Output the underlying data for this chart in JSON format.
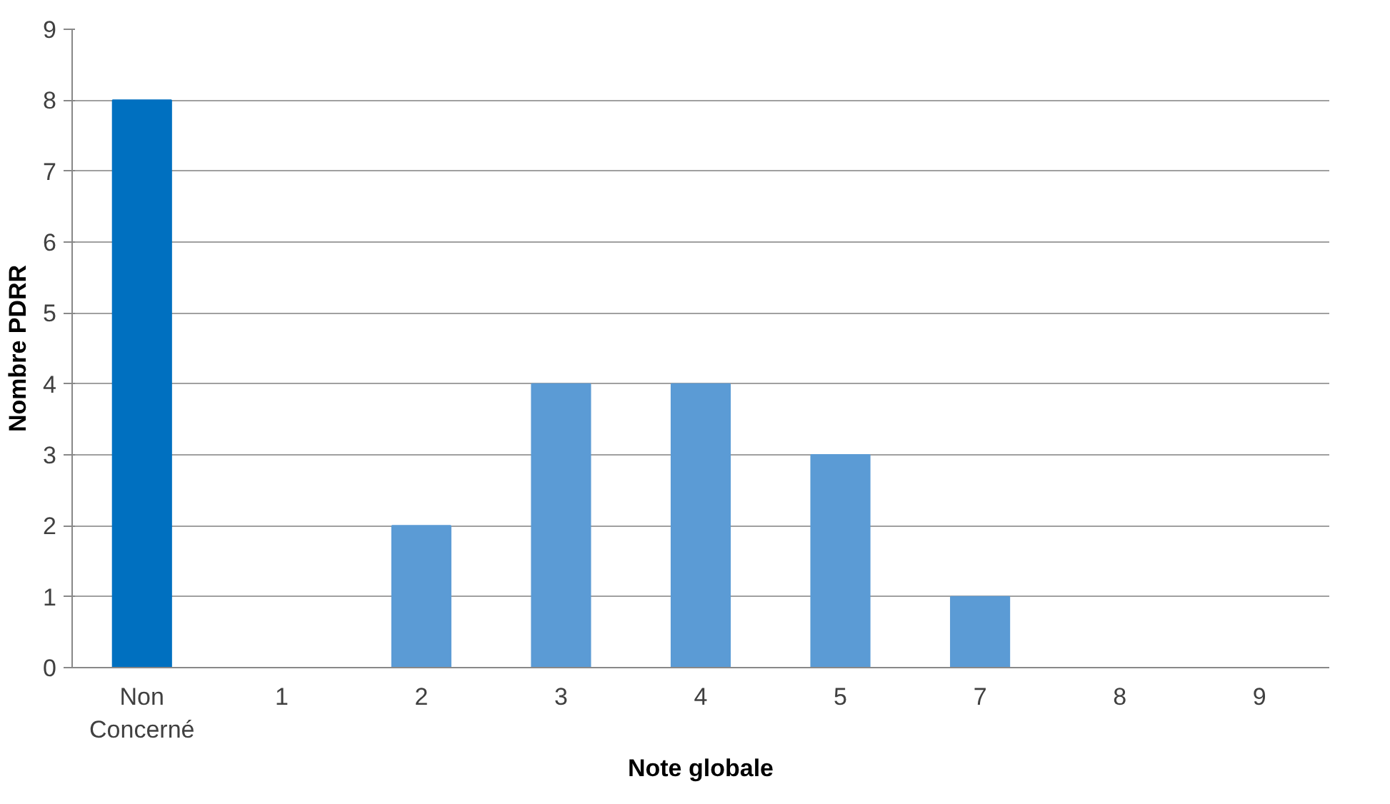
{
  "chart_data": {
    "type": "bar",
    "xlabel": "Note globale",
    "ylabel": "Nombre PDRR",
    "categories": [
      "Non Concerné",
      "1",
      "2",
      "3",
      "4",
      "5",
      "7",
      "8",
      "9"
    ],
    "values": [
      8,
      0,
      2,
      4,
      4,
      3,
      1,
      0,
      0
    ],
    "colors": [
      "#0070c0",
      "#5b9bd5",
      "#5b9bd5",
      "#5b9bd5",
      "#5b9bd5",
      "#5b9bd5",
      "#5b9bd5",
      "#5b9bd5",
      "#5b9bd5"
    ],
    "ylim": [
      0,
      9
    ],
    "yticks": [
      0,
      1,
      2,
      3,
      4,
      5,
      6,
      7,
      8,
      9
    ],
    "grid": "y"
  }
}
